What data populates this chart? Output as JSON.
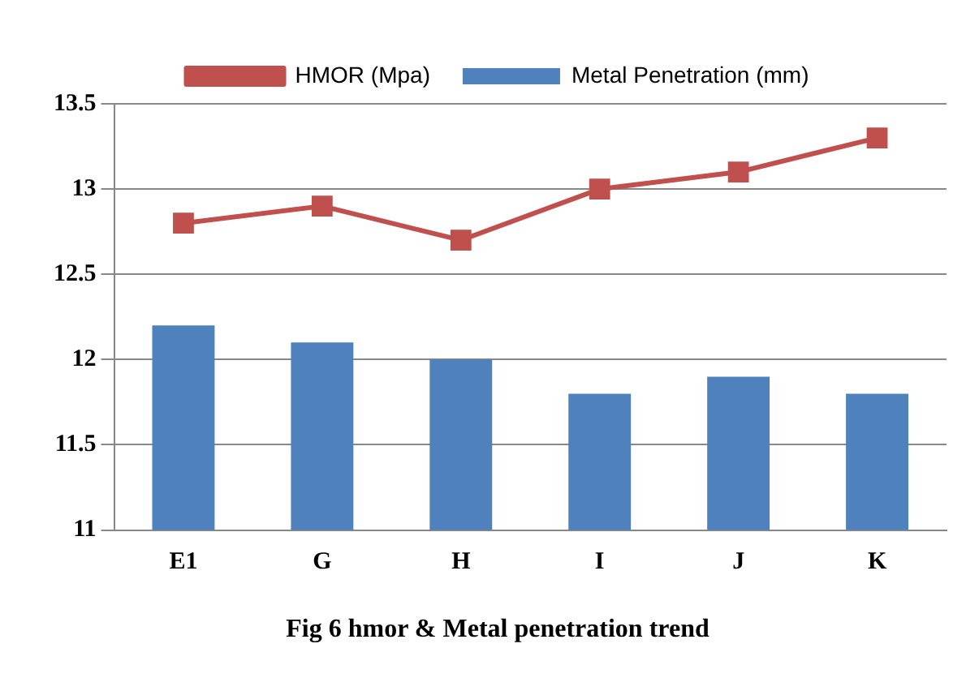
{
  "chart_data": {
    "type": "bar",
    "title": "Fig 6 hmor & Metal penetration trend",
    "categories": [
      "E1",
      "G",
      "H",
      "I",
      "J",
      "K"
    ],
    "series": [
      {
        "name": "Metal Penetration (mm)",
        "color": "#4f81bd",
        "values": [
          12.2,
          12.1,
          12.0,
          11.8,
          11.9,
          11.8
        ]
      },
      {
        "name": "HMOR (Mpa)",
        "type": "line",
        "color": "#c0504d",
        "values": [
          12.8,
          12.9,
          12.7,
          13.0,
          13.1,
          13.3
        ]
      }
    ],
    "ylim": [
      11,
      13.5
    ],
    "yticks": [
      11,
      11.5,
      12,
      12.5,
      13,
      13.5
    ],
    "grid": "y",
    "legend": "top",
    "marker": "square",
    "line_style": "solid"
  }
}
